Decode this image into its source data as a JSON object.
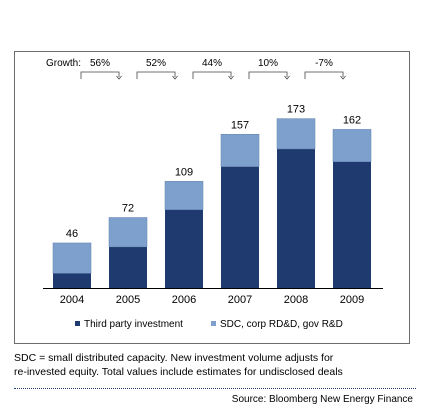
{
  "chart_data": {
    "type": "bar",
    "stacked": true,
    "categories": [
      "2004",
      "2005",
      "2006",
      "2007",
      "2008",
      "2009"
    ],
    "series": [
      {
        "name": "Third party investment",
        "color": "#1f3a6e",
        "values": [
          15,
          42,
          80,
          124,
          142,
          129
        ]
      },
      {
        "name": "SDC, corp RD&D, gov R&D",
        "color": "#7ea0cd",
        "values": [
          31,
          30,
          29,
          33,
          31,
          33
        ]
      }
    ],
    "totals": [
      "46",
      "72",
      "109",
      "157",
      "173",
      "162"
    ],
    "growth": {
      "label": "Growth:",
      "values": [
        "56%",
        "52%",
        "44%",
        "10%",
        "-7%"
      ]
    },
    "ylim": [
      0,
      190
    ],
    "grid": false,
    "legend": "bottom"
  },
  "footnote": {
    "line1": "SDC = small distributed capacity.  New investment volume adjusts for",
    "line2": "re-invested equity.  Total values include estimates for undisclosed deals"
  },
  "source": "Source: Bloomberg New Energy Finance"
}
